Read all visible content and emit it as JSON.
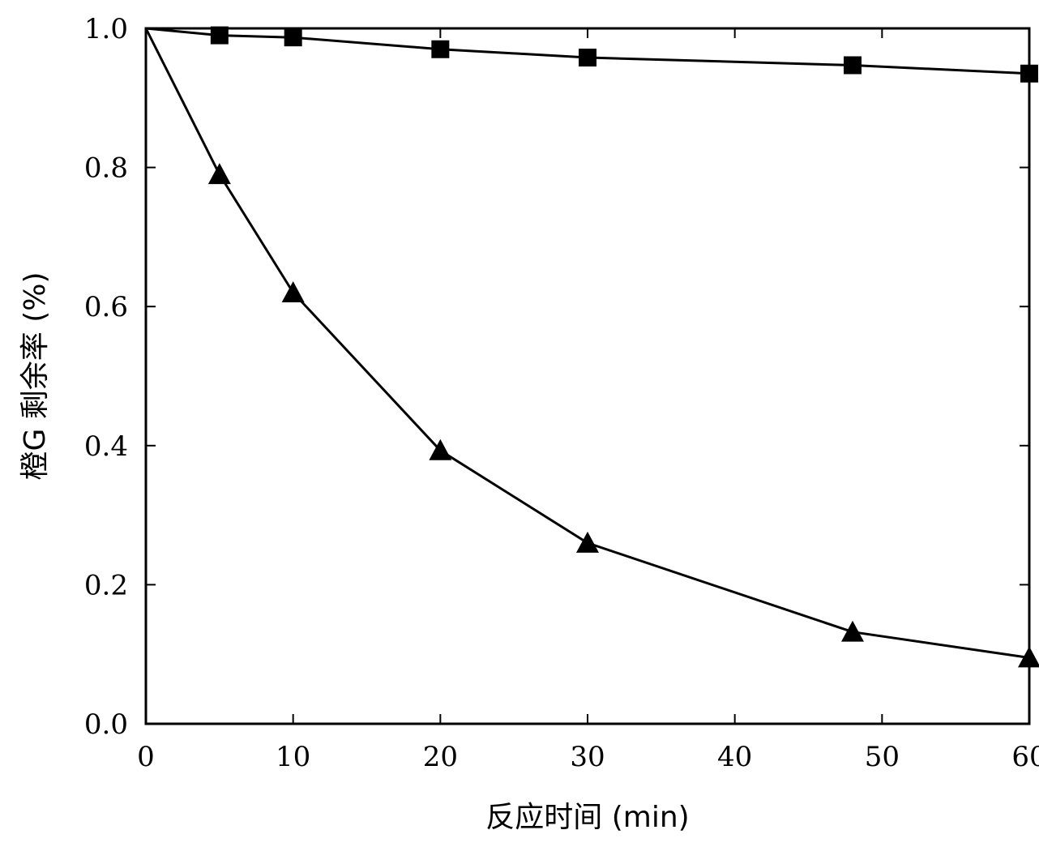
{
  "chart_data": {
    "type": "line",
    "xlabel": "反应时间 (min)",
    "ylabel": "橙G 剩余率 (%)",
    "xlim": [
      0,
      60
    ],
    "ylim": [
      0.0,
      1.0
    ],
    "xticks": [
      0,
      10,
      20,
      30,
      40,
      50,
      60
    ],
    "xtick_labels": [
      "0",
      "10",
      "20",
      "30",
      "40",
      "50",
      "60"
    ],
    "yticks": [
      0.0,
      0.2,
      0.4,
      0.6,
      0.8,
      1.0
    ],
    "ytick_labels": [
      "0.0",
      "0.2",
      "0.4",
      "0.6",
      "0.8",
      "1.0"
    ],
    "grid": false,
    "series": [
      {
        "marker": "square",
        "color": "#000000",
        "x": [
          0,
          5,
          10,
          20,
          30,
          48,
          60
        ],
        "y": [
          1.0,
          0.99,
          0.987,
          0.97,
          0.958,
          0.947,
          0.935
        ]
      },
      {
        "marker": "triangle",
        "color": "#000000",
        "x": [
          0,
          5,
          10,
          20,
          30,
          48,
          60
        ],
        "y": [
          1.0,
          0.79,
          0.62,
          0.393,
          0.26,
          0.132,
          0.095
        ]
      }
    ]
  }
}
